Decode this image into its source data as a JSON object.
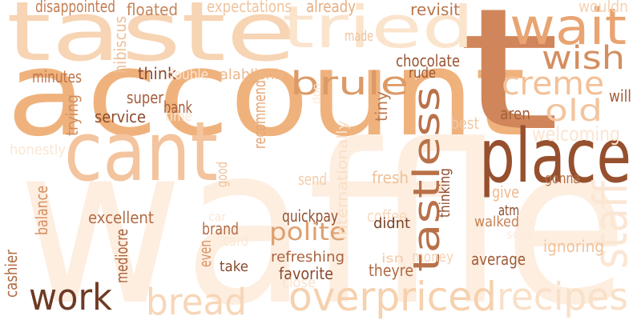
{
  "title": "",
  "words": [
    {
      "text": "waffle",
      "color": "#fdeee0",
      "orient": "h"
    },
    {
      "text": "account",
      "color": "#f0b27c",
      "orient": "h"
    },
    {
      "text": "taste",
      "color": "#f7d4b3",
      "orient": "h"
    },
    {
      "text": "t",
      "color": "#d0855a",
      "orient": "h"
    },
    {
      "text": "cant",
      "color": "#f3c49e",
      "orient": "h"
    },
    {
      "text": "place",
      "color": "#96502e",
      "orient": "h"
    },
    {
      "text": "tried",
      "color": "#fbe4cc",
      "orient": "h"
    },
    {
      "text": "wait",
      "color": "#e9a472",
      "orient": "h"
    },
    {
      "text": "wish",
      "color": "#d48e60",
      "orient": "h"
    },
    {
      "text": "creme",
      "color": "#f3c097",
      "orient": "h"
    },
    {
      "text": "old",
      "color": "#f2c59f",
      "orient": "h"
    },
    {
      "text": "brule",
      "color": "#dc9a66",
      "orient": "h"
    },
    {
      "text": "tastless",
      "color": "#b9714a",
      "orient": "v"
    },
    {
      "text": "staff",
      "color": "#fbe6d4",
      "orient": "v"
    },
    {
      "text": "overpriced",
      "color": "#f6d1ae",
      "orient": "h"
    },
    {
      "text": "recipes",
      "color": "#f9e0c8",
      "orient": "h"
    },
    {
      "text": "bread",
      "color": "#f7d6b8",
      "orient": "h"
    },
    {
      "text": "work",
      "color": "#6e3a24",
      "orient": "h"
    },
    {
      "text": "polite",
      "color": "#dea070",
      "orient": "h"
    },
    {
      "text": "welcoming",
      "color": "#fbe5d2",
      "orient": "h"
    },
    {
      "text": "disappointed",
      "color": "#c27c50",
      "orient": "h"
    },
    {
      "text": "floated",
      "color": "#c48358",
      "orient": "h"
    },
    {
      "text": "expectations",
      "color": "#f0c39c",
      "orient": "h"
    },
    {
      "text": "already",
      "color": "#e7ad7e",
      "orient": "h"
    },
    {
      "text": "revisit",
      "color": "#b9764e",
      "orient": "h"
    },
    {
      "text": "wouldn",
      "color": "#f5d2b2",
      "orient": "h"
    },
    {
      "text": "hibiscus",
      "color": "#efbf97",
      "orient": "v"
    },
    {
      "text": "made",
      "color": "#f0c39d",
      "orient": "h"
    },
    {
      "text": "chocolate",
      "color": "#9a5432",
      "orient": "h"
    },
    {
      "text": "rude",
      "color": "#9c5634",
      "orient": "h"
    },
    {
      "text": "think",
      "color": "#8a4a2c",
      "orient": "h"
    },
    {
      "text": "double",
      "color": "#fbe6d4",
      "orient": "h"
    },
    {
      "text": "alahlisnb",
      "color": "#edb788",
      "orient": "h"
    },
    {
      "text": "minutes",
      "color": "#bb744c",
      "orient": "h"
    },
    {
      "text": "super",
      "color": "#a35c38",
      "orient": "h"
    },
    {
      "text": "recommend",
      "color": "#e5a676",
      "orient": "v"
    },
    {
      "text": "don",
      "color": "#fbe7d5",
      "orient": "v"
    },
    {
      "text": "tiny",
      "color": "#bd774f",
      "orient": "v"
    },
    {
      "text": "aren",
      "color": "#a4603a",
      "orient": "h"
    },
    {
      "text": "will",
      "color": "#a25c37",
      "orient": "h"
    },
    {
      "text": "trying",
      "color": "#cf8d60",
      "orient": "v"
    },
    {
      "text": "bank",
      "color": "#a65f3a",
      "orient": "h"
    },
    {
      "text": "service",
      "color": "#8c4b2e",
      "orient": "h"
    },
    {
      "text": "time",
      "color": "#fbe8d6",
      "orient": "h"
    },
    {
      "text": "best",
      "color": "#f3c8a3",
      "orient": "h"
    },
    {
      "text": "honestly",
      "color": "#fbe7d5",
      "orient": "h"
    },
    {
      "text": "internationally",
      "color": "#f9dfc6",
      "orient": "v"
    },
    {
      "text": "good",
      "color": "#efc19a",
      "orient": "v"
    },
    {
      "text": "send",
      "color": "#f5cdaa",
      "orient": "h"
    },
    {
      "text": "fresh",
      "color": "#f0bf96",
      "orient": "h"
    },
    {
      "text": "thinking",
      "color": "#8f4d2f",
      "orient": "v"
    },
    {
      "text": "gonna",
      "color": "#b26e47",
      "orient": "h"
    },
    {
      "text": "give",
      "color": "#efb98c",
      "orient": "h"
    },
    {
      "text": "balance",
      "color": "#d58f62",
      "orient": "v"
    },
    {
      "text": "excellent",
      "color": "#b36b44",
      "orient": "h"
    },
    {
      "text": "car",
      "color": "#fbe6d3",
      "orient": "h"
    },
    {
      "text": "quickpay",
      "color": "#92502f",
      "orient": "h"
    },
    {
      "text": "coffee",
      "color": "#f7d9bc",
      "orient": "h"
    },
    {
      "text": "atm",
      "color": "#8a4a2c",
      "orient": "h"
    },
    {
      "text": "didnt",
      "color": "#7a4026",
      "orient": "h"
    },
    {
      "text": "walked",
      "color": "#c58054",
      "orient": "h"
    },
    {
      "text": "soon",
      "color": "#fcebdc",
      "orient": "h"
    },
    {
      "text": "brand",
      "color": "#b16a43",
      "orient": "h"
    },
    {
      "text": "card",
      "color": "#fbe7d5",
      "orient": "h"
    },
    {
      "text": "ignoring",
      "color": "#f1c29b",
      "orient": "h"
    },
    {
      "text": "mediocre",
      "color": "#a65f3a",
      "orient": "v"
    },
    {
      "text": "even",
      "color": "#d69165",
      "orient": "v"
    },
    {
      "text": "cashier",
      "color": "#b16a42",
      "orient": "v"
    },
    {
      "text": "take",
      "color": "#884a2c",
      "orient": "h"
    },
    {
      "text": "refreshing",
      "color": "#aa633d",
      "orient": "h"
    },
    {
      "text": "isn",
      "color": "#f4c9a4",
      "orient": "h"
    },
    {
      "text": "money",
      "color": "#f6d3b3",
      "orient": "h"
    },
    {
      "text": "average",
      "color": "#a15a36",
      "orient": "h"
    },
    {
      "text": "favorite",
      "color": "#8a4a2c",
      "orient": "h"
    },
    {
      "text": "theyre",
      "color": "#b06943",
      "orient": "h"
    },
    {
      "text": "close",
      "color": "#fae2cc",
      "orient": "h"
    }
  ]
}
